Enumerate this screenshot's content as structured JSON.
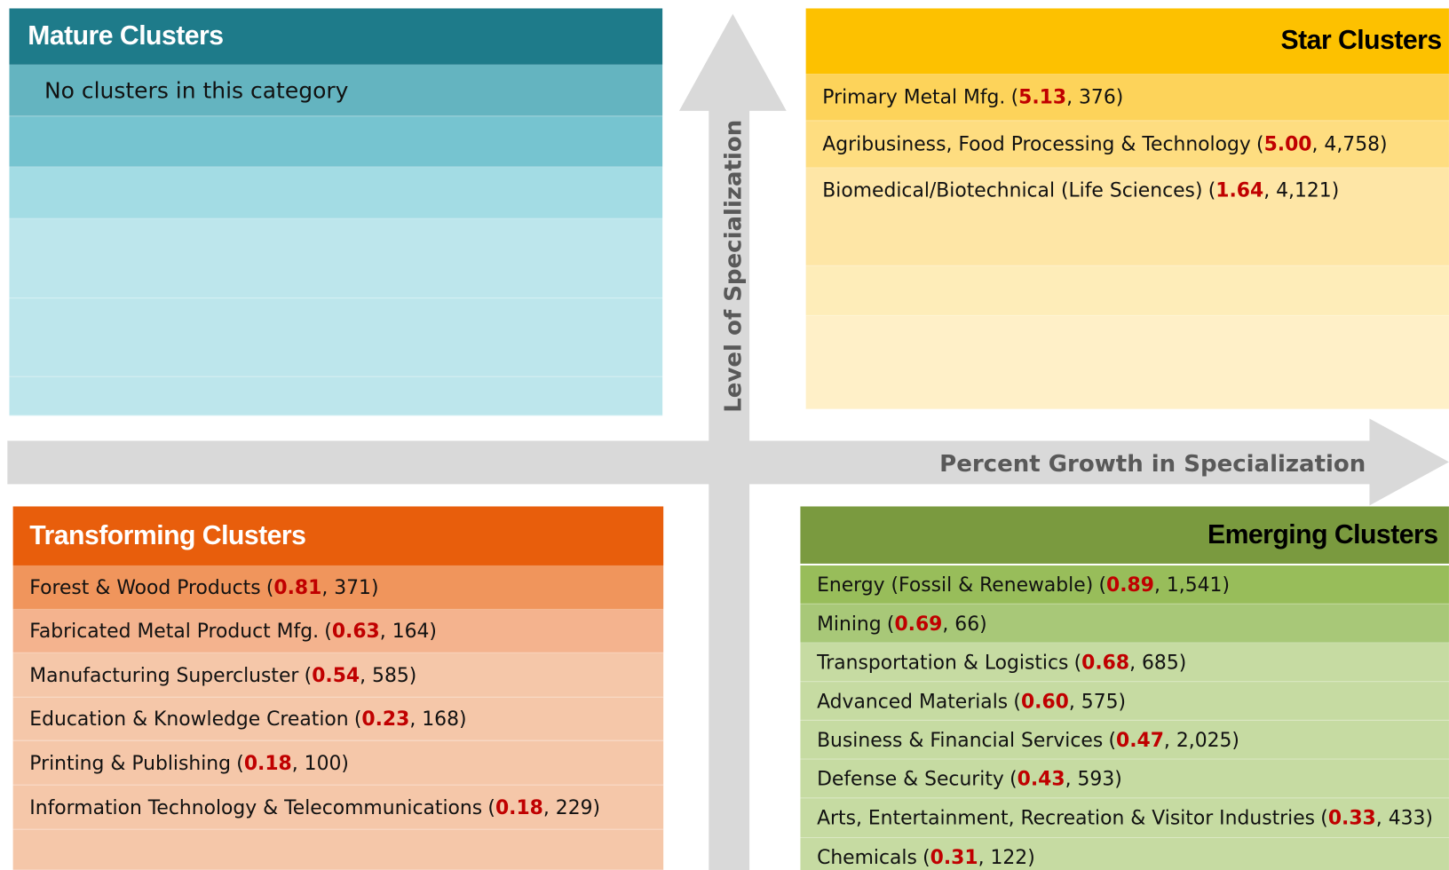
{
  "axes": {
    "vertical": "Level of Specialization",
    "horizontal": "Percent Growth in Specialization"
  },
  "quadrants": {
    "mature": {
      "title": "Mature Clusters",
      "note": "No clusters in this category",
      "items": []
    },
    "star": {
      "title": "Star Clusters",
      "items": [
        {
          "name": "Primary Metal Mfg.",
          "lq": "5.13",
          "employment": "376"
        },
        {
          "name": "Agribusiness, Food Processing & Technology",
          "lq": "5.00",
          "employment": "4,758"
        },
        {
          "name": "Biomedical/Biotechnical (Life Sciences)",
          "lq": "1.64",
          "employment": "4,121"
        }
      ]
    },
    "transforming": {
      "title": "Transforming Clusters",
      "items": [
        {
          "name": "Forest & Wood Products",
          "lq": "0.81",
          "employment": "371"
        },
        {
          "name": "Fabricated Metal Product Mfg.",
          "lq": "0.63",
          "employment": "164"
        },
        {
          "name": "Manufacturing Supercluster",
          "lq": "0.54",
          "employment": "585"
        },
        {
          "name": "Education & Knowledge Creation",
          "lq": "0.23",
          "employment": "168"
        },
        {
          "name": "Printing & Publishing",
          "lq": "0.18",
          "employment": "100"
        },
        {
          "name": "Information Technology & Telecommunications",
          "lq": "0.18",
          "employment": "229"
        }
      ]
    },
    "emerging": {
      "title": "Emerging Clusters",
      "items": [
        {
          "name": "Energy (Fossil & Renewable)",
          "lq": "0.89",
          "employment": "1,541"
        },
        {
          "name": "Mining",
          "lq": "0.69",
          "employment": "66"
        },
        {
          "name": "Transportation & Logistics",
          "lq": "0.68",
          "employment": "685"
        },
        {
          "name": "Advanced Materials",
          "lq": "0.60",
          "employment": "575"
        },
        {
          "name": "Business & Financial Services",
          "lq": "0.47",
          "employment": "2,025"
        },
        {
          "name": "Defense & Security",
          "lq": "0.43",
          "employment": "593"
        },
        {
          "name": "Arts, Entertainment, Recreation & Visitor Industries",
          "lq": "0.33",
          "employment": "433"
        },
        {
          "name": "Chemicals",
          "lq": "0.31",
          "employment": "122"
        }
      ]
    }
  }
}
